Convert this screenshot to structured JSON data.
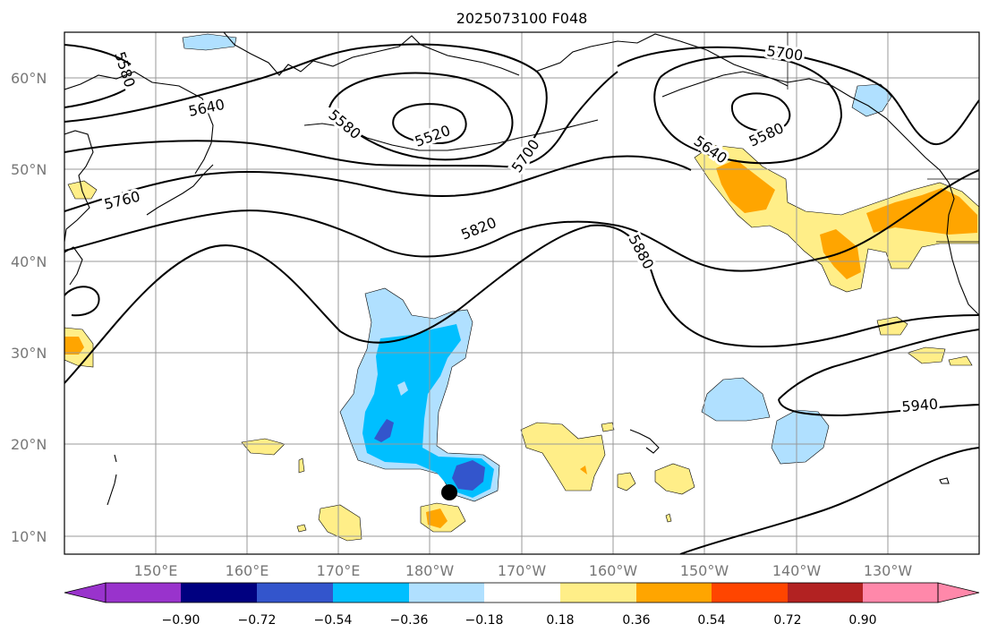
{
  "title": "2025073100 F048",
  "lat_labels": [
    "60°N",
    "50°N",
    "40°N",
    "30°N",
    "20°N",
    "10°N"
  ],
  "lon_labels": [
    "150°E",
    "160°E",
    "170°E",
    "180°W",
    "170°W",
    "160°W",
    "150°W",
    "140°W",
    "130°W"
  ],
  "contours": {
    "c5580a": "5580",
    "c5640a": "5640",
    "c5580b": "5580",
    "c5520": "5520",
    "c5700a": "5700",
    "c5700b": "5700",
    "c5640b": "5640",
    "c5580c": "5580",
    "c5760": "5760",
    "c5820": "5820",
    "c5880": "5880",
    "c5940": "5940"
  },
  "colorbar": {
    "levels": [
      "−0.90",
      "−0.72",
      "−0.54",
      "−0.36",
      "−0.18",
      "0.18",
      "0.36",
      "0.54",
      "0.72",
      "0.90"
    ],
    "colors": {
      "under": "#9933cc",
      "n090": "#000080",
      "n072": "#3355cc",
      "n054": "#00bfff",
      "n036": "#b0e0ff",
      "neutral": "#ffffff",
      "p018": "#ffee88",
      "p036": "#ffa500",
      "p054": "#ff4500",
      "p072": "#b22222",
      "over": "#ff88aa"
    }
  },
  "marker_icon": "black-dot-icon"
}
